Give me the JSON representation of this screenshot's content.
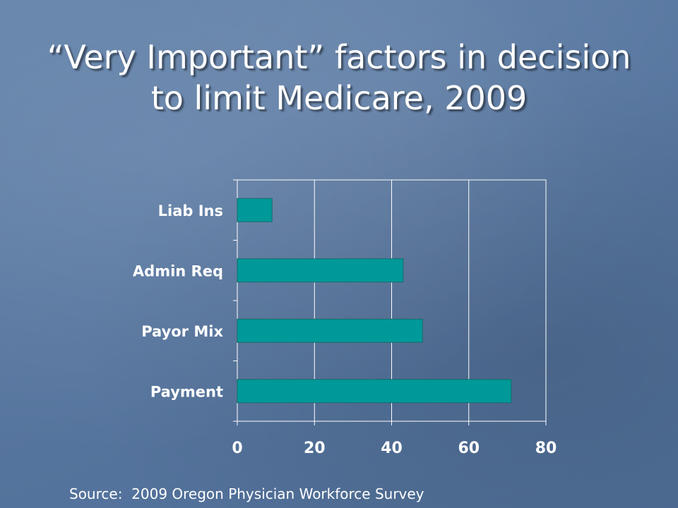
{
  "title_lines": [
    "“Very Important” factors in decision",
    "to limit Medicare, 2009"
  ],
  "source": "Source:  2009 Oregon Physician Workforce Survey",
  "colors": {
    "bar": "#009999",
    "bar_stroke": "#1a6b6b",
    "grid": "#ffffff",
    "text": "#ffffff"
  },
  "chart_data": {
    "type": "bar",
    "orientation": "horizontal",
    "categories": [
      "Liab Ins",
      "Admin Req",
      "Payor Mix",
      "Payment"
    ],
    "values": [
      9,
      43,
      48,
      71
    ],
    "xlim": [
      0,
      80
    ],
    "xticks": [
      "0",
      "20",
      "40",
      "60",
      "80"
    ],
    "grid": true
  }
}
